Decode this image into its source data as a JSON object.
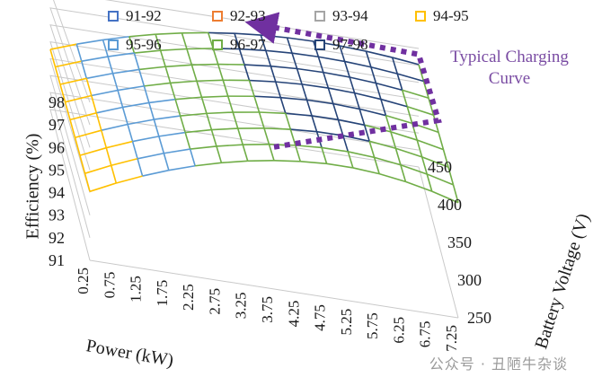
{
  "chart_data": {
    "type": "surface-3d-wireframe",
    "legend": {
      "placement": "top-left",
      "entries": [
        {
          "label": "91-92",
          "color": "#4472C4"
        },
        {
          "label": "92-93",
          "color": "#ED7D31"
        },
        {
          "label": "93-94",
          "color": "#A5A5A5"
        },
        {
          "label": "94-95",
          "color": "#FFC000"
        },
        {
          "label": "95-96",
          "color": "#5B9BD5"
        },
        {
          "label": "96-97",
          "color": "#70AD47"
        },
        {
          "label": "97-98",
          "color": "#264478"
        }
      ]
    },
    "x_axis": {
      "label": "Power (kW)",
      "ticks": [
        "0.25",
        "0.75",
        "1.25",
        "1.75",
        "2.25",
        "2.75",
        "3.25",
        "3.75",
        "4.25",
        "4.75",
        "5.25",
        "5.75",
        "6.25",
        "6.75",
        "7.25"
      ],
      "range": [
        0.25,
        7.25
      ]
    },
    "y_axis": {
      "label": "Battery Voltage (V)",
      "ticks": [
        "250",
        "300",
        "350",
        "400",
        "450"
      ],
      "range": [
        250,
        450
      ]
    },
    "z_axis": {
      "label": "Efficiency (%)",
      "ticks": [
        "91",
        "92",
        "93",
        "94",
        "95",
        "96",
        "97",
        "98"
      ],
      "range": [
        91,
        98
      ]
    },
    "annotation": {
      "text_line1": "Typical Charging",
      "text_line2": "Curve",
      "color": "#7030A0",
      "style": "dotted-arrow",
      "path": [
        [
          3.75,
          250
        ],
        [
          7.25,
          350
        ],
        [
          7.25,
          450
        ],
        [
          4.25,
          450
        ]
      ]
    },
    "grid": true
  },
  "watermark": "公众号 · 丑陋牛杂谈"
}
